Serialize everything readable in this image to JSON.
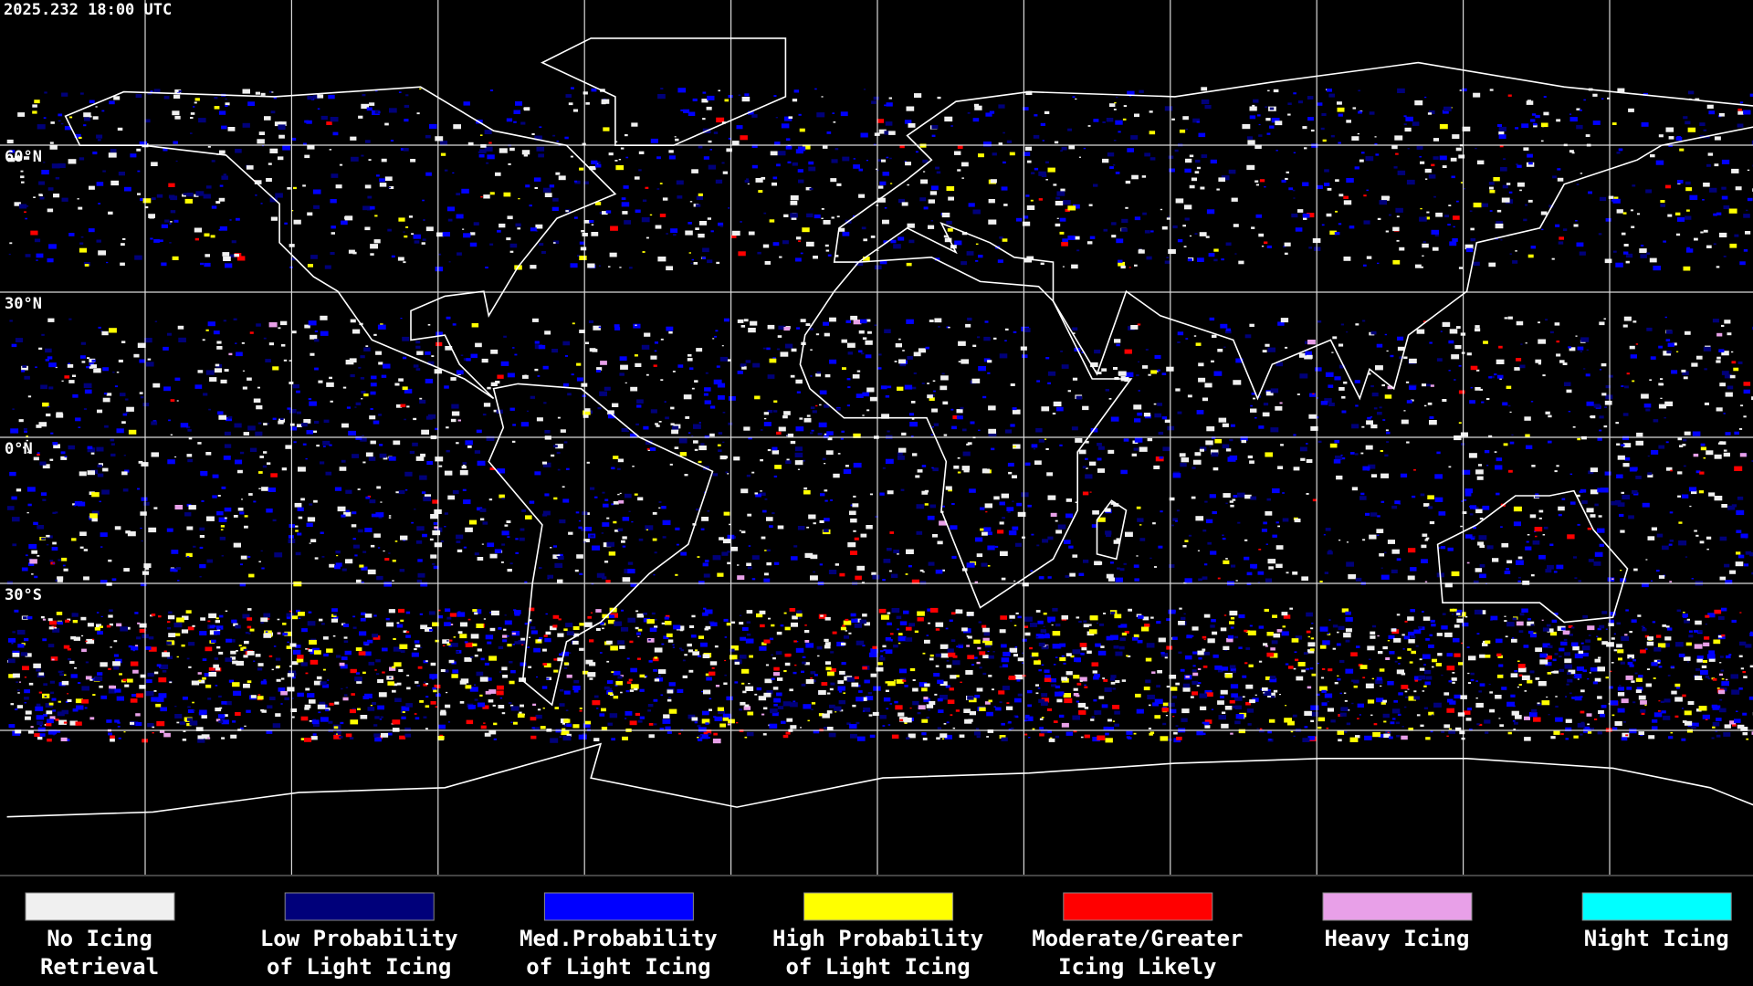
{
  "header": {
    "timestamp": "2025.232 18:00 UTC"
  },
  "map": {
    "latitude_labels": [
      "60°N",
      "30°N",
      "0°N",
      "30°S"
    ]
  },
  "legend": [
    {
      "lines": [
        "No Icing",
        "Retrieval"
      ],
      "color": "#f0f0f0"
    },
    {
      "lines": [
        "Low Probability",
        "of Light Icing"
      ],
      "color": "#00007a"
    },
    {
      "lines": [
        "Med.Probability",
        "of Light Icing"
      ],
      "color": "#0000ff"
    },
    {
      "lines": [
        "High Probability",
        "of Light Icing"
      ],
      "color": "#ffff00"
    },
    {
      "lines": [
        "Moderate/Greater",
        "Icing Likely"
      ],
      "color": "#ff0000"
    },
    {
      "lines": [
        "Heavy Icing"
      ],
      "color": "#e8a0e8"
    },
    {
      "lines": [
        "Night Icing"
      ],
      "color": "#00ffff"
    }
  ]
}
